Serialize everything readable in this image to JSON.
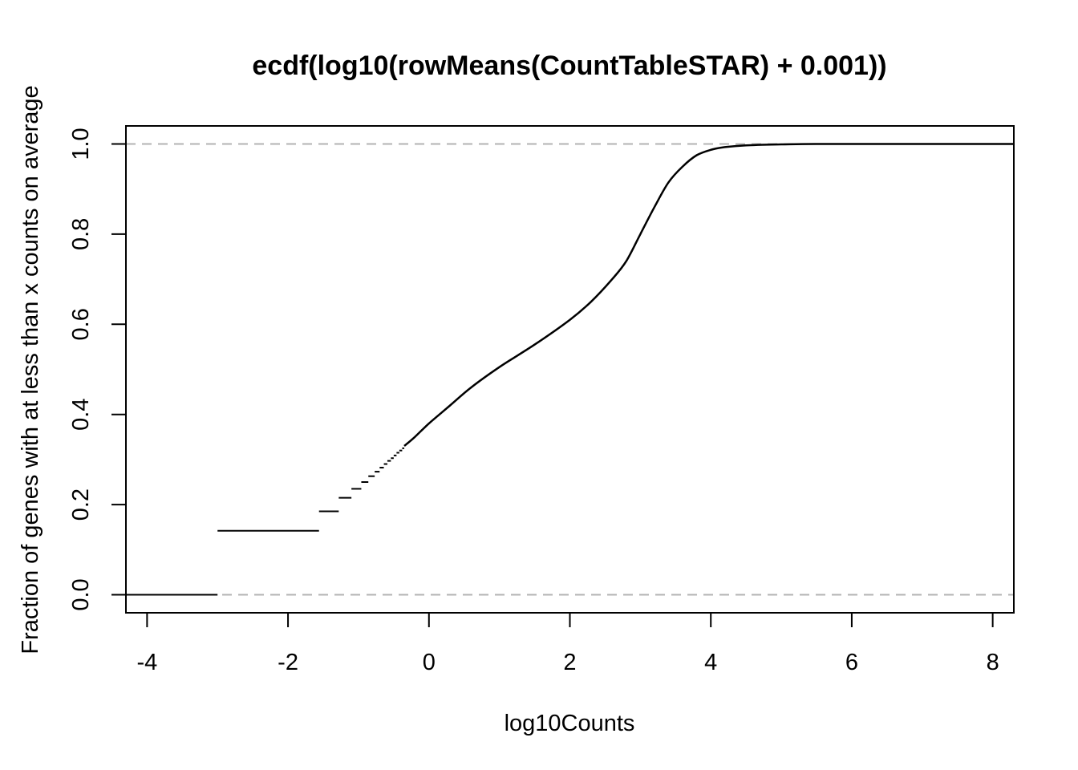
{
  "chart_data": {
    "type": "line",
    "title": "ecdf(log10(rowMeans(CountTableSTAR) + 0.001))",
    "xlabel": "log10Counts",
    "ylabel": "Fraction of genes with at less than x counts on average",
    "xlim": [
      -4.3,
      8.3
    ],
    "ylim": [
      -0.04,
      1.04
    ],
    "x_ticks": [
      -4,
      -2,
      0,
      2,
      4,
      6,
      8
    ],
    "x_tick_labels": [
      "-4",
      "-2",
      "0",
      "2",
      "4",
      "6",
      "8"
    ],
    "y_ticks": [
      0.0,
      0.2,
      0.4,
      0.6,
      0.8,
      1.0
    ],
    "y_tick_labels": [
      "0.0",
      "0.2",
      "0.4",
      "0.6",
      "0.8",
      "1.0"
    ],
    "reference_lines": [
      0.0,
      1.0
    ],
    "step_segments": [
      {
        "x0": -4.3,
        "x1": -3.0,
        "y": 0.0
      },
      {
        "x0": -3.0,
        "x1": -1.56,
        "y": 0.142
      },
      {
        "x0": -1.56,
        "x1": -1.28,
        "y": 0.185
      },
      {
        "x0": -1.28,
        "x1": -1.1,
        "y": 0.215
      },
      {
        "x0": -1.1,
        "x1": -0.96,
        "y": 0.235
      },
      {
        "x0": -0.96,
        "x1": -0.86,
        "y": 0.25
      },
      {
        "x0": -0.86,
        "x1": -0.77,
        "y": 0.263
      },
      {
        "x0": -0.77,
        "x1": -0.7,
        "y": 0.273
      },
      {
        "x0": -0.7,
        "x1": -0.64,
        "y": 0.282
      },
      {
        "x0": -0.64,
        "x1": -0.59,
        "y": 0.29
      },
      {
        "x0": -0.59,
        "x1": -0.54,
        "y": 0.297
      },
      {
        "x0": -0.54,
        "x1": -0.5,
        "y": 0.303
      },
      {
        "x0": -0.5,
        "x1": -0.46,
        "y": 0.309
      },
      {
        "x0": -0.46,
        "x1": -0.42,
        "y": 0.315
      },
      {
        "x0": -0.42,
        "x1": -0.38,
        "y": 0.32
      },
      {
        "x0": -0.38,
        "x1": -0.35,
        "y": 0.325
      }
    ],
    "curve": {
      "x": [
        -0.35,
        -0.2,
        0,
        0.3,
        0.6,
        1.0,
        1.5,
        2.0,
        2.3,
        2.6,
        2.8,
        3.0,
        3.2,
        3.4,
        3.6,
        3.8,
        4.0,
        4.2,
        4.5,
        5.0,
        5.5,
        6.5,
        8.3
      ],
      "y": [
        0.33,
        0.35,
        0.38,
        0.42,
        0.46,
        0.505,
        0.555,
        0.61,
        0.65,
        0.7,
        0.74,
        0.8,
        0.86,
        0.915,
        0.95,
        0.975,
        0.987,
        0.993,
        0.997,
        0.999,
        1.0,
        1.0,
        1.0
      ]
    }
  }
}
